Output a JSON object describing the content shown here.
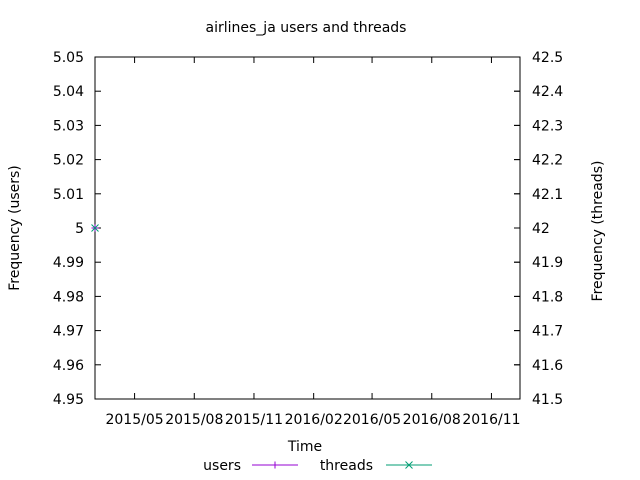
{
  "chart_data": {
    "type": "line",
    "title": "airlines_ja users and threads",
    "xlabel": "Time",
    "ylabel_left": "Frequency (users)",
    "ylabel_right": "Frequency (threads)",
    "x_ticks": [
      "2015/05",
      "2015/08",
      "2015/11",
      "2016/02",
      "2016/05",
      "2016/08",
      "2016/11"
    ],
    "x_tick_dates": [
      "2015-05-01",
      "2015-08-01",
      "2015-11-01",
      "2016-02-01",
      "2016-05-01",
      "2016-08-01",
      "2016-11-01"
    ],
    "xlim": [
      "2015-03-01",
      "2016-12-15"
    ],
    "y_left_ticks": [
      "4.95",
      "4.96",
      "4.97",
      "4.98",
      "4.99",
      "5",
      "5.01",
      "5.02",
      "5.03",
      "5.04",
      "5.05"
    ],
    "y_left_lim": [
      4.95,
      5.05
    ],
    "y_right_ticks": [
      "41.5",
      "41.6",
      "41.7",
      "41.8",
      "41.9",
      "42",
      "42.1",
      "42.2",
      "42.3",
      "42.4",
      "42.5"
    ],
    "y_right_lim": [
      41.5,
      42.5
    ],
    "grid": false,
    "legend_position": "bottom-center",
    "series": [
      {
        "name": "users",
        "axis": "left",
        "color": "#9400d3",
        "marker": "plus",
        "x": [
          "2015-03-01"
        ],
        "values": [
          5
        ]
      },
      {
        "name": "threads",
        "axis": "right",
        "color": "#009e73",
        "marker": "cross",
        "x": [
          "2015-03-01"
        ],
        "values": [
          42
        ]
      }
    ]
  }
}
